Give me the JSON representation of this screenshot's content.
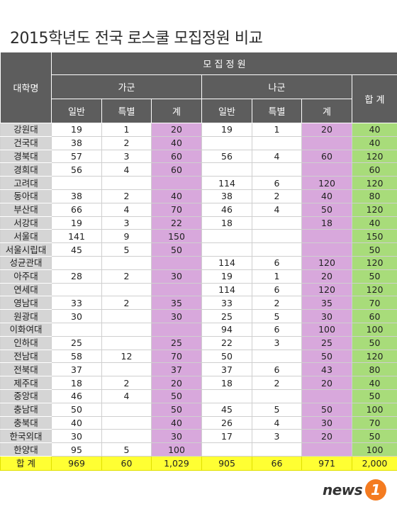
{
  "title": "2015학년도 전국 로스쿨 모집정원 비교",
  "headers": {
    "school": "대학명",
    "quota": "모 집 정 원",
    "group_a": "가군",
    "group_b": "나군",
    "total": "합 계",
    "general": "일반",
    "special": "특별",
    "sum": "계"
  },
  "rows": [
    {
      "name": "강원대",
      "a_gen": "19",
      "a_spe": "1",
      "a_sum": "20",
      "b_gen": "19",
      "b_spe": "1",
      "b_sum": "20",
      "total": "40"
    },
    {
      "name": "건국대",
      "a_gen": "38",
      "a_spe": "2",
      "a_sum": "40",
      "b_gen": "",
      "b_spe": "",
      "b_sum": "",
      "total": "40"
    },
    {
      "name": "경북대",
      "a_gen": "57",
      "a_spe": "3",
      "a_sum": "60",
      "b_gen": "56",
      "b_spe": "4",
      "b_sum": "60",
      "total": "120"
    },
    {
      "name": "경희대",
      "a_gen": "56",
      "a_spe": "4",
      "a_sum": "60",
      "b_gen": "",
      "b_spe": "",
      "b_sum": "",
      "total": "60"
    },
    {
      "name": "고려대",
      "a_gen": "",
      "a_spe": "",
      "a_sum": "",
      "b_gen": "114",
      "b_spe": "6",
      "b_sum": "120",
      "total": "120"
    },
    {
      "name": "동아대",
      "a_gen": "38",
      "a_spe": "2",
      "a_sum": "40",
      "b_gen": "38",
      "b_spe": "2",
      "b_sum": "40",
      "total": "80"
    },
    {
      "name": "부산대",
      "a_gen": "66",
      "a_spe": "4",
      "a_sum": "70",
      "b_gen": "46",
      "b_spe": "4",
      "b_sum": "50",
      "total": "120"
    },
    {
      "name": "서강대",
      "a_gen": "19",
      "a_spe": "3",
      "a_sum": "22",
      "b_gen": "18",
      "b_spe": "",
      "b_sum": "18",
      "total": "40"
    },
    {
      "name": "서울대",
      "a_gen": "141",
      "a_spe": "9",
      "a_sum": "150",
      "b_gen": "",
      "b_spe": "",
      "b_sum": "",
      "total": "150"
    },
    {
      "name": "서울시립대",
      "a_gen": "45",
      "a_spe": "5",
      "a_sum": "50",
      "b_gen": "",
      "b_spe": "",
      "b_sum": "",
      "total": "50"
    },
    {
      "name": "성균관대",
      "a_gen": "",
      "a_spe": "",
      "a_sum": "",
      "b_gen": "114",
      "b_spe": "6",
      "b_sum": "120",
      "total": "120"
    },
    {
      "name": "아주대",
      "a_gen": "28",
      "a_spe": "2",
      "a_sum": "30",
      "b_gen": "19",
      "b_spe": "1",
      "b_sum": "20",
      "total": "50"
    },
    {
      "name": "연세대",
      "a_gen": "",
      "a_spe": "",
      "a_sum": "",
      "b_gen": "114",
      "b_spe": "6",
      "b_sum": "120",
      "total": "120"
    },
    {
      "name": "영남대",
      "a_gen": "33",
      "a_spe": "2",
      "a_sum": "35",
      "b_gen": "33",
      "b_spe": "2",
      "b_sum": "35",
      "total": "70"
    },
    {
      "name": "원광대",
      "a_gen": "30",
      "a_spe": "",
      "a_sum": "30",
      "b_gen": "25",
      "b_spe": "5",
      "b_sum": "30",
      "total": "60"
    },
    {
      "name": "이화여대",
      "a_gen": "",
      "a_spe": "",
      "a_sum": "",
      "b_gen": "94",
      "b_spe": "6",
      "b_sum": "100",
      "total": "100"
    },
    {
      "name": "인하대",
      "a_gen": "25",
      "a_spe": "",
      "a_sum": "25",
      "b_gen": "22",
      "b_spe": "3",
      "b_sum": "25",
      "total": "50"
    },
    {
      "name": "전남대",
      "a_gen": "58",
      "a_spe": "12",
      "a_sum": "70",
      "b_gen": "50",
      "b_spe": "",
      "b_sum": "50",
      "total": "120"
    },
    {
      "name": "전북대",
      "a_gen": "37",
      "a_spe": "",
      "a_sum": "37",
      "b_gen": "37",
      "b_spe": "6",
      "b_sum": "43",
      "total": "80"
    },
    {
      "name": "제주대",
      "a_gen": "18",
      "a_spe": "2",
      "a_sum": "20",
      "b_gen": "18",
      "b_spe": "2",
      "b_sum": "20",
      "total": "40"
    },
    {
      "name": "중앙대",
      "a_gen": "46",
      "a_spe": "4",
      "a_sum": "50",
      "b_gen": "",
      "b_spe": "",
      "b_sum": "",
      "total": "50"
    },
    {
      "name": "충남대",
      "a_gen": "50",
      "a_spe": "",
      "a_sum": "50",
      "b_gen": "45",
      "b_spe": "5",
      "b_sum": "50",
      "total": "100"
    },
    {
      "name": "충북대",
      "a_gen": "40",
      "a_spe": "",
      "a_sum": "40",
      "b_gen": "26",
      "b_spe": "4",
      "b_sum": "30",
      "total": "70"
    },
    {
      "name": "한국외대",
      "a_gen": "30",
      "a_spe": "",
      "a_sum": "30",
      "b_gen": "17",
      "b_spe": "3",
      "b_sum": "20",
      "total": "50"
    },
    {
      "name": "한양대",
      "a_gen": "95",
      "a_spe": "5",
      "a_sum": "100",
      "b_gen": "",
      "b_spe": "",
      "b_sum": "",
      "total": "100"
    }
  ],
  "total_row": {
    "name": "합 계",
    "a_gen": "969",
    "a_spe": "60",
    "a_sum": "1,029",
    "b_gen": "905",
    "b_spe": "66",
    "b_sum": "971",
    "total": "2,000"
  },
  "logo": {
    "text": "news",
    "mark": "1"
  },
  "colors": {
    "header": "#5d5d5d",
    "sum": "#d8a8dc",
    "total": "#a8dc7a",
    "total_row": "#ffff33",
    "logo_orange": "#f47b20"
  }
}
